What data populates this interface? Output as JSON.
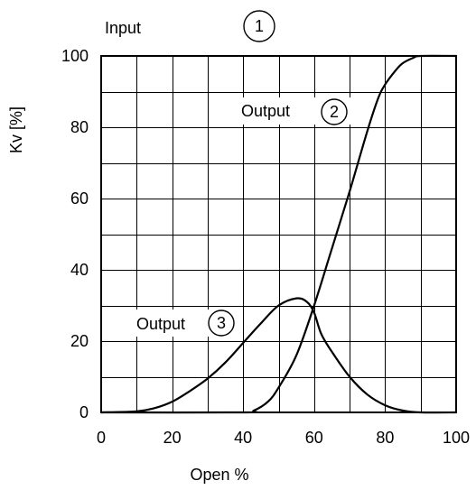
{
  "chart_data": {
    "type": "line",
    "title": "",
    "xlabel": "Open %",
    "ylabel": "Kv [%]",
    "xlim": [
      0,
      100
    ],
    "ylim": [
      0,
      100
    ],
    "x_ticks": [
      "0",
      "20",
      "40",
      "60",
      "80",
      "100"
    ],
    "y_ticks": [
      "0",
      "20",
      "40",
      "60",
      "80",
      "100"
    ],
    "grid": true,
    "annotations": [
      {
        "id": "input",
        "text": "Input",
        "number": "1"
      },
      {
        "id": "output2",
        "text": "Output",
        "number": "2"
      },
      {
        "id": "output3",
        "text": "Output",
        "number": "3"
      }
    ],
    "series": [
      {
        "id": "output2",
        "x": [
          0,
          40,
          43,
          47,
          50,
          55,
          60,
          65,
          70,
          75,
          78,
          80,
          83,
          85,
          88,
          90,
          100
        ],
        "y": [
          0,
          0,
          0.5,
          3,
          7,
          16,
          30,
          46,
          62,
          79,
          88,
          92,
          96,
          98,
          99.5,
          100,
          100
        ]
      },
      {
        "id": "output3",
        "x": [
          0,
          10,
          15,
          20,
          25,
          30,
          35,
          40,
          45,
          50,
          55,
          58,
          60,
          62,
          65,
          70,
          75,
          80,
          85,
          90,
          100
        ],
        "y": [
          0,
          0.3,
          1.2,
          3,
          6,
          9.5,
          14,
          19.5,
          25,
          30,
          32,
          31,
          28,
          22,
          17,
          10,
          5,
          2,
          0.5,
          0,
          0
        ]
      }
    ]
  }
}
